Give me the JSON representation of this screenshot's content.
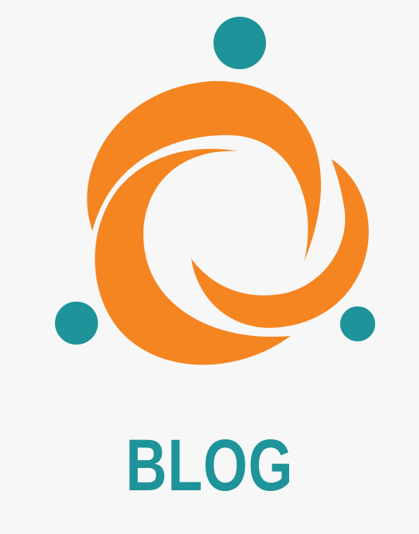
{
  "logo": {
    "title": "BLOG",
    "colors": {
      "background": "#f7f7f7",
      "orange": "#f58521",
      "teal": "#1e9399"
    }
  }
}
